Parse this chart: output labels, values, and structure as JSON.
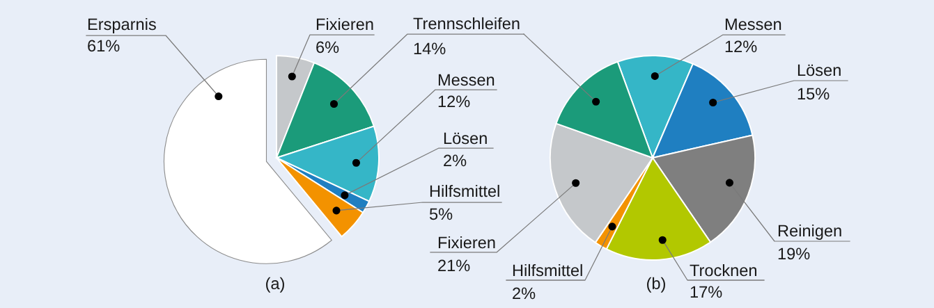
{
  "chart_data": [
    {
      "type": "pie",
      "title": "(a)",
      "categories": [
        "Fixieren",
        "Trennschleifen",
        "Messen",
        "Lösen",
        "Hilfsmittel",
        "Ersparnis"
      ],
      "values": [
        6,
        14,
        12,
        2,
        5,
        61
      ],
      "value_labels": [
        "6%",
        "14%",
        "12%",
        "2%",
        "5%",
        "61%"
      ],
      "colors": [
        "#c5c8cb",
        "#1b9b7a",
        "#35b6c7",
        "#1f7fc1",
        "#f39200",
        "#ffffff"
      ]
    },
    {
      "type": "pie",
      "title": "(b)",
      "categories": [
        "Messen",
        "Lösen",
        "Reinigen",
        "Trocknen",
        "Hilfsmittel",
        "Fixieren",
        null
      ],
      "values": [
        12,
        15,
        19,
        17,
        2,
        21,
        14
      ],
      "value_labels": [
        "12%",
        "15%",
        "19%",
        "17%",
        "2%",
        "21%",
        null
      ],
      "colors": [
        "#35b6c7",
        "#1f7fc1",
        "#7f7f7f",
        "#b2c800",
        "#f39200",
        "#c5c8cb",
        "#1b9b7a"
      ]
    }
  ]
}
